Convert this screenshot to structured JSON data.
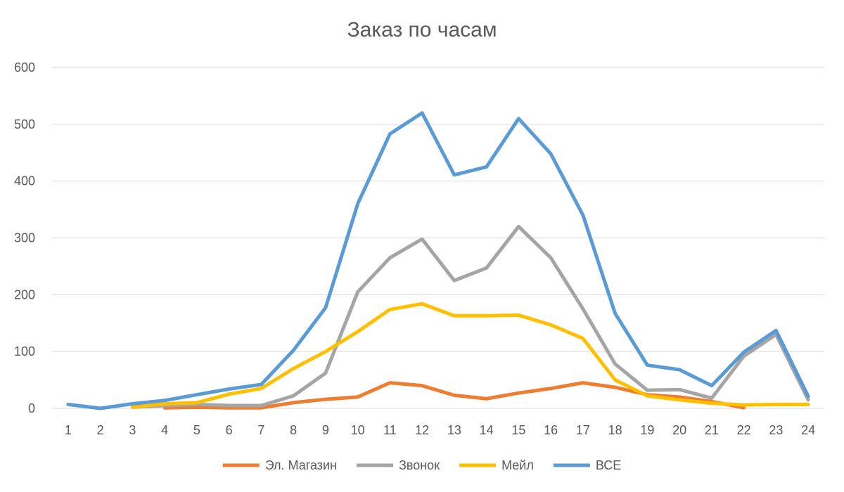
{
  "chart_data": {
    "type": "line",
    "title": "Заказ по часам",
    "xlabel": "",
    "ylabel": "",
    "categories": [
      "1",
      "2",
      "3",
      "4",
      "5",
      "6",
      "7",
      "8",
      "9",
      "10",
      "11",
      "12",
      "13",
      "14",
      "15",
      "16",
      "17",
      "18",
      "19",
      "20",
      "21",
      "22",
      "23",
      "24"
    ],
    "ylim": [
      0,
      600
    ],
    "yticks": [
      0,
      100,
      200,
      300,
      400,
      500,
      600
    ],
    "grid": true,
    "legend_position": "bottom",
    "series": [
      {
        "name": "Эл. Магазин",
        "color": "#ED7D31",
        "values": [
          null,
          null,
          null,
          1,
          2,
          1,
          1,
          10,
          16,
          20,
          45,
          40,
          23,
          17,
          27,
          35,
          45,
          37,
          24,
          20,
          12,
          1,
          null,
          null
        ]
      },
      {
        "name": "Звонок",
        "color": "#A5A5A5",
        "values": [
          null,
          null,
          2,
          5,
          7,
          5,
          5,
          22,
          62,
          205,
          265,
          298,
          225,
          247,
          320,
          265,
          175,
          78,
          32,
          33,
          18,
          92,
          130,
          15
        ]
      },
      {
        "name": "Мейл",
        "color": "#FFC000",
        "values": [
          null,
          null,
          2,
          8,
          10,
          25,
          35,
          70,
          100,
          135,
          174,
          184,
          163,
          163,
          164,
          147,
          123,
          50,
          22,
          15,
          9,
          6,
          7,
          7
        ]
      },
      {
        "name": "ВСЕ",
        "color": "#5B9BD5",
        "values": [
          7,
          0,
          8,
          14,
          24,
          34,
          42,
          102,
          177,
          360,
          483,
          520,
          411,
          425,
          510,
          448,
          340,
          167,
          76,
          68,
          40,
          99,
          137,
          21
        ]
      }
    ]
  }
}
